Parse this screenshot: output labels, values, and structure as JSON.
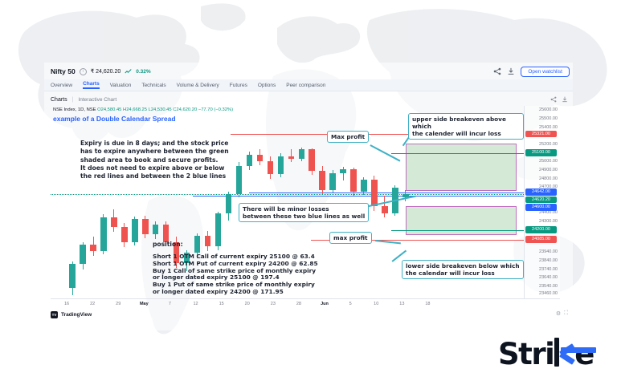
{
  "header": {
    "symbol": "Nifty 50",
    "price": "₹ 24,620.20",
    "change_percent": "0.32%",
    "open_watchlist_label": "Open watchlist"
  },
  "tabs": [
    {
      "label": "Overview",
      "active": false
    },
    {
      "label": "Charts",
      "active": true
    },
    {
      "label": "Valuation",
      "active": false
    },
    {
      "label": "Technicals",
      "active": false
    },
    {
      "label": "Volume & Delivery",
      "active": false
    },
    {
      "label": "Futures",
      "active": false
    },
    {
      "label": "Options",
      "active": false
    },
    {
      "label": "Peer comparison",
      "active": false
    }
  ],
  "subnav": {
    "section": "Charts",
    "item": "Interactive Chart"
  },
  "legend": {
    "series": "NSE Index, 1D, NSE",
    "ohlc": "O24,580.45 H24,668.25 L24,530.45 C24,620.20",
    "change": "−77.70 (−0.32%)"
  },
  "chart_title": "example of a Double Calendar Spread",
  "notes": {
    "expiry_note": "Expiry is due in 8 days; and the stock price\nhas to expire anywhere between the green\nshaded area to book and secure profits.\nIt does not need to expire above or below\nthe red lines and between the 2 blue lines",
    "position_title": "position:",
    "position_detail": "Short 1 OTM Call of current expiry 25100 @ 63.4\nShort 1 OTM Put of current expiry 24200 @ 62.85\nBuy 1 Call of same strike price of monthly expiry\nor longer dated expiry 25100 @ 197.4\nBuy 1 Put of same strike price of monthly expiry\nor longer dated expiry 24200 @ 171.95"
  },
  "callouts": {
    "max_profit_upper": "Max profit",
    "upper_breakeven": "upper side breakeven above which\nthe calender will incur loss",
    "minor_losses": "There will be minor losses\nbetween these two blue lines as well",
    "max_profit_lower": "max profit",
    "lower_breakeven": "lower side breakeven below which\nthe calendar will incur loss"
  },
  "attribution": {
    "logo_text": "TV",
    "label": "TradingView"
  },
  "chart_actions": {
    "settings_glyph": "⚙",
    "fullscreen_glyph": "⛶"
  },
  "logo": {
    "prefix": "Stri",
    "suffix": "e",
    "accent": "#2e6bf6"
  },
  "colors": {
    "up": "#26a69a",
    "down": "#ef5350",
    "accent_blue": "#2962ff",
    "teal": "#089981",
    "red_line": "#f05452",
    "zone_fill": "#cbe4cd",
    "zone_border": "#c06ec0",
    "callout_border": "#3fb1c5"
  },
  "chart_data": {
    "type": "candlestick",
    "symbol": "Nifty 50",
    "interval": "1D",
    "exchange": "NSE",
    "last": {
      "open": 24580.45,
      "high": 24668.25,
      "low": 24530.45,
      "close": 24620.2,
      "change": -77.7,
      "change_percent": -0.32
    },
    "y_axis": {
      "min": 23400,
      "max": 25650,
      "tick_labels": [
        "25600.00",
        "25500.00",
        "25400.00",
        "25200.00",
        "25000.00",
        "24900.00",
        "24800.00",
        "24700.00",
        "24400.00",
        "24300.00",
        "23940.00",
        "23840.00",
        "23740.00",
        "23640.00",
        "23540.00",
        "23460.00"
      ]
    },
    "x_axis_labels": [
      "16",
      "22",
      "29",
      "May",
      "7",
      "12",
      "15",
      "20",
      "23",
      "28",
      "Jun",
      "5",
      "10",
      "13",
      "18"
    ],
    "candles": [
      [
        23520,
        23830,
        23440,
        23800
      ],
      [
        23800,
        24060,
        23740,
        24030
      ],
      [
        24030,
        24120,
        23900,
        23950
      ],
      [
        23950,
        24380,
        23920,
        24350
      ],
      [
        24350,
        24440,
        24180,
        24230
      ],
      [
        24230,
        24280,
        24000,
        24060
      ],
      [
        24060,
        24360,
        24020,
        24330
      ],
      [
        24330,
        24370,
        24100,
        24150
      ],
      [
        24150,
        24300,
        24090,
        24260
      ],
      [
        24260,
        24300,
        24010,
        24060
      ],
      [
        24060,
        24120,
        23760,
        23810
      ],
      [
        23810,
        23960,
        23720,
        23930
      ],
      [
        23930,
        24160,
        23870,
        24130
      ],
      [
        24130,
        24190,
        23950,
        24010
      ],
      [
        24010,
        24410,
        23960,
        24390
      ],
      [
        24390,
        24650,
        24310,
        24620
      ],
      [
        24620,
        24990,
        24580,
        24950
      ],
      [
        24950,
        25120,
        24900,
        25080
      ],
      [
        25080,
        25140,
        24960,
        25000
      ],
      [
        25000,
        25060,
        24800,
        24850
      ],
      [
        24850,
        25100,
        24820,
        25060
      ],
      [
        25060,
        25140,
        24990,
        25030
      ],
      [
        25030,
        25160,
        25000,
        25140
      ],
      [
        25140,
        25150,
        24840,
        24890
      ],
      [
        24890,
        24950,
        24620,
        24670
      ],
      [
        24670,
        24900,
        24640,
        24860
      ],
      [
        24860,
        24940,
        24780,
        24910
      ],
      [
        24910,
        24930,
        24600,
        24650
      ],
      [
        24650,
        24820,
        24610,
        24790
      ],
      [
        24790,
        24830,
        24420,
        24480
      ],
      [
        24480,
        24600,
        24350,
        24390
      ],
      [
        24390,
        24720,
        24370,
        24698
      ],
      [
        24580,
        24668,
        24530,
        24620
      ]
    ],
    "levels": [
      {
        "price": 25321.0,
        "label": "25321.00",
        "color": "#f05452",
        "from": 0.38,
        "role": "upper-breakeven-line"
      },
      {
        "price": 25100.0,
        "label": "25100.00",
        "color": "#089981",
        "from": 0.72,
        "role": "short-call-strike"
      },
      {
        "price": 24642.0,
        "label": "24642.00",
        "color": "#2962ff",
        "from": 0.42,
        "role": "upper-blue-line"
      },
      {
        "price": 24620.2,
        "label": "24620.20",
        "color": "#089981",
        "from": 0,
        "style": "dotted",
        "role": "last-price"
      },
      {
        "price": 24600.0,
        "label": "24600.00",
        "color": "#2962ff",
        "from": 0.3,
        "role": "lower-blue-line"
      },
      {
        "price": 24200.0,
        "label": "24200.00",
        "color": "#089981",
        "from": 0.72,
        "role": "short-put-strike"
      },
      {
        "price": 24085.0,
        "label": "24085.00",
        "color": "#f05452",
        "from": 0.55,
        "role": "lower-breakeven-line"
      }
    ],
    "zones": [
      {
        "top": 25210,
        "bottom": 24660,
        "x0": 0.75,
        "x1": 0.985,
        "label": "upper max profit zone"
      },
      {
        "top": 24480,
        "bottom": 24140,
        "x0": 0.75,
        "x1": 0.985,
        "label": "lower max profit zone"
      }
    ]
  }
}
